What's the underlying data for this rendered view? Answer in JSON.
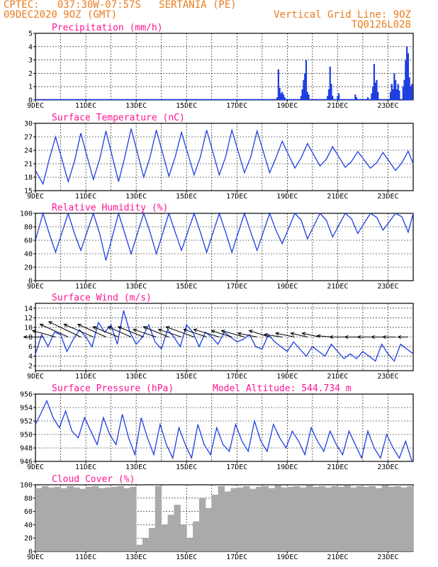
{
  "header": {
    "left_line1": "CPTEC:   037:30W-07:57S   SERTANIA (PE)",
    "left_line2": "09DEC2020 9OZ (GMT)",
    "right_line1": "Vertical Grid Line: 9OZ",
    "right_line2": "TQ0126L028"
  },
  "colors": {
    "header": "#e87c1e",
    "title": "#ff1493",
    "line": "#1f3fe0",
    "bar": "#1f3fe0",
    "cloud": "#aaaaaa",
    "arrow": "#000000"
  },
  "chart_data": [
    {
      "type": "bar",
      "title": "Precipitation (mm/h)",
      "ylim": [
        0,
        5
      ],
      "yticks": [
        0,
        1,
        2,
        3,
        4,
        5
      ],
      "xticks": [
        "9DEC",
        "11DEC",
        "13DEC",
        "15DEC",
        "17DEC",
        "19DEC",
        "21DEC",
        "23DEC"
      ],
      "xrange_days": [
        9,
        24
      ],
      "series": [
        {
          "x": [
            18.6,
            18.65,
            18.7,
            18.75,
            18.8,
            18.85,
            18.9,
            19.55,
            19.6,
            19.65,
            19.7,
            19.75,
            19.8,
            19.85,
            20.6,
            20.65,
            20.7,
            20.75,
            20.8,
            21.0,
            21.05,
            21.7,
            21.75,
            22.2,
            22.35,
            22.4,
            22.45,
            22.5,
            22.55,
            22.6,
            23.1,
            23.15,
            23.2,
            23.25,
            23.3,
            23.35,
            23.4,
            23.45,
            23.6,
            23.65,
            23.7,
            23.75,
            23.8,
            23.85,
            23.9,
            23.95
          ],
          "values": [
            0.2,
            2.3,
            0.9,
            0.5,
            0.6,
            0.4,
            0.2,
            0.3,
            0.8,
            1.5,
            2.0,
            3.0,
            0.6,
            0.4,
            0.3,
            0.8,
            2.5,
            1.2,
            0.3,
            0.3,
            0.5,
            0.4,
            0.2,
            0.2,
            0.5,
            1.0,
            2.7,
            1.3,
            1.5,
            0.6,
            0.6,
            1.2,
            0.8,
            2.0,
            1.5,
            0.8,
            1.2,
            0.7,
            1.0,
            1.5,
            3.0,
            4.0,
            3.5,
            1.7,
            1.0,
            1.2
          ]
        }
      ]
    },
    {
      "type": "line",
      "title": "Surface Temperature (nC)",
      "ylim": [
        15,
        30
      ],
      "yticks": [
        15,
        18,
        21,
        24,
        27,
        30
      ],
      "xticks": [
        "9DEC",
        "11DEC",
        "13DEC",
        "15DEC",
        "17DEC",
        "19DEC",
        "21DEC",
        "23DEC"
      ],
      "series": [
        {
          "x": [
            9.0,
            9.3,
            9.55,
            9.8,
            10.3,
            10.55,
            10.8,
            11.3,
            11.55,
            11.8,
            12.3,
            12.55,
            12.8,
            13.3,
            13.55,
            13.8,
            14.3,
            14.55,
            14.8,
            15.3,
            15.55,
            15.8,
            16.3,
            16.55,
            16.8,
            17.3,
            17.55,
            17.8,
            18.3,
            18.55,
            18.8,
            19.3,
            19.55,
            19.8,
            20.3,
            20.55,
            20.8,
            21.3,
            21.55,
            21.8,
            22.3,
            22.55,
            22.8,
            23.3,
            23.55,
            23.8,
            24.0
          ],
          "values": [
            19.5,
            16.5,
            22,
            27,
            17,
            21.5,
            27.8,
            17.5,
            22,
            28.3,
            17.0,
            22.5,
            28.8,
            18.0,
            22.5,
            28.5,
            18.2,
            22.5,
            28.0,
            18.5,
            22.5,
            28.5,
            18.5,
            22.5,
            28.5,
            19.0,
            22.5,
            28.3,
            19.0,
            22.3,
            26.0,
            20.0,
            22.3,
            25.5,
            20.5,
            22.0,
            24.8,
            20.2,
            21.5,
            23.7,
            20.0,
            21.2,
            23.5,
            19.5,
            21.2,
            23.8,
            21.0
          ]
        }
      ]
    },
    {
      "type": "line",
      "title": "Relative Humidity (%)",
      "ylim": [
        0,
        100
      ],
      "yticks": [
        0,
        20,
        40,
        60,
        80,
        100
      ],
      "xticks": [
        "9DEC",
        "11DEC",
        "13DEC",
        "15DEC",
        "17DEC",
        "19DEC",
        "21DEC",
        "23DEC"
      ],
      "series": [
        {
          "x": [
            9.0,
            9.3,
            9.55,
            9.8,
            10.3,
            10.55,
            10.8,
            11.3,
            11.55,
            11.8,
            12.3,
            12.55,
            12.8,
            13.3,
            13.55,
            13.8,
            14.3,
            14.55,
            14.8,
            15.3,
            15.55,
            15.8,
            16.3,
            16.55,
            16.8,
            17.3,
            17.55,
            17.8,
            18.3,
            18.55,
            18.8,
            19.3,
            19.55,
            19.8,
            20.3,
            20.55,
            20.8,
            21.3,
            21.55,
            21.8,
            22.3,
            22.55,
            22.8,
            23.3,
            23.55,
            23.8,
            24.0
          ],
          "values": [
            60,
            100,
            70,
            42,
            100,
            70,
            45,
            100,
            70,
            30,
            100,
            70,
            40,
            100,
            72,
            40,
            100,
            72,
            45,
            100,
            72,
            42,
            100,
            72,
            42,
            100,
            72,
            45,
            100,
            75,
            55,
            100,
            90,
            62,
            100,
            90,
            65,
            100,
            92,
            70,
            100,
            94,
            75,
            100,
            95,
            72,
            100
          ]
        }
      ]
    },
    {
      "type": "line",
      "title": "Surface Wind (m/s)",
      "ylim": [
        1,
        15
      ],
      "yticks": [
        2,
        4,
        6,
        8,
        10,
        12,
        14
      ],
      "xticks": [
        "9DEC",
        "11DEC",
        "13DEC",
        "15DEC",
        "17DEC",
        "19DEC",
        "21DEC",
        "23DEC"
      ],
      "series": [
        {
          "x": [
            9.0,
            9.25,
            9.5,
            9.75,
            10.0,
            10.25,
            10.5,
            10.75,
            11.0,
            11.25,
            11.5,
            11.75,
            12.0,
            12.25,
            12.5,
            12.75,
            13.0,
            13.25,
            13.5,
            13.75,
            14.0,
            14.25,
            14.5,
            14.75,
            15.0,
            15.25,
            15.5,
            15.75,
            16.0,
            16.25,
            16.5,
            16.75,
            17.0,
            17.25,
            17.5,
            17.75,
            18.0,
            18.25,
            18.5,
            18.75,
            19.0,
            19.25,
            19.5,
            19.75,
            20.0,
            20.25,
            20.5,
            20.75,
            21.0,
            21.25,
            21.5,
            21.75,
            22.0,
            22.25,
            22.5,
            22.75,
            23.0,
            23.25,
            23.5,
            23.75,
            24.0
          ],
          "values": [
            4.5,
            8.5,
            6.0,
            9.0,
            8.5,
            5.0,
            7.5,
            9.5,
            8.0,
            6.0,
            11.0,
            9.0,
            10.5,
            6.5,
            13.5,
            9.0,
            6.5,
            8.0,
            10.5,
            7.0,
            5.5,
            9.5,
            8.0,
            6.0,
            10.5,
            9.0,
            6.0,
            9.0,
            8.0,
            6.5,
            9.0,
            8.0,
            7.0,
            7.5,
            8.5,
            6.0,
            5.5,
            8.5,
            7.0,
            6.0,
            5.0,
            7.0,
            5.5,
            4.0,
            6.0,
            5.0,
            4.0,
            6.5,
            5.0,
            3.5,
            4.5,
            3.5,
            5.0,
            4.0,
            3.0,
            6.5,
            4.5,
            3.0,
            6.5,
            5.5,
            4.5
          ]
        }
      ],
      "vectors": {
        "x": [
          9.3,
          9.8,
          10.3,
          10.8,
          11.3,
          11.8,
          12.3,
          12.8,
          13.3,
          13.8,
          14.3,
          14.8,
          15.3,
          15.8,
          16.3,
          16.8,
          17.3,
          17.8,
          18.3,
          18.8,
          19.3,
          19.8,
          20.3,
          20.8,
          21.3,
          21.8,
          22.3,
          22.8,
          23.3,
          23.8
        ],
        "u": [
          -1.5,
          -1.8,
          -2.2,
          -2.5,
          -2.3,
          -2.2,
          -2.0,
          -1.8,
          -2.0,
          -1.8,
          -2.0,
          -1.8,
          -2.2,
          -1.8,
          -2.0,
          -1.6,
          -1.8,
          -1.5,
          -1.6,
          -1.4,
          -1.5,
          -1.3,
          -1.4,
          -1.2,
          -1.2,
          -1.0,
          -1.0,
          -0.9,
          -1.0,
          -0.8
        ],
        "v": [
          0.0,
          0.5,
          1.0,
          1.2,
          1.0,
          1.0,
          0.8,
          0.8,
          0.8,
          0.6,
          0.8,
          0.6,
          0.8,
          0.6,
          0.6,
          0.5,
          0.5,
          0.3,
          0.5,
          0.2,
          0.3,
          0.3,
          0.3,
          0.1,
          0.0,
          0.0,
          0.0,
          0.0,
          0.0,
          0.0
        ]
      }
    },
    {
      "type": "line",
      "title": "Surface Pressure (hPa)",
      "annotation": "Model Altitude: 544.734 m",
      "ylim": [
        946,
        956
      ],
      "yticks": [
        946,
        948,
        950,
        952,
        954,
        956
      ],
      "xticks": [
        "9DEC",
        "11DEC",
        "13DEC",
        "15DEC",
        "17DEC",
        "19DEC",
        "21DEC",
        "23DEC"
      ],
      "series": [
        {
          "x": [
            9.0,
            9.2,
            9.45,
            9.7,
            9.95,
            10.2,
            10.45,
            10.7,
            10.95,
            11.2,
            11.45,
            11.7,
            11.95,
            12.2,
            12.45,
            12.7,
            12.95,
            13.2,
            13.45,
            13.7,
            13.95,
            14.2,
            14.45,
            14.7,
            14.95,
            15.2,
            15.45,
            15.7,
            15.95,
            16.2,
            16.45,
            16.7,
            16.95,
            17.2,
            17.45,
            17.7,
            17.95,
            18.2,
            18.45,
            18.7,
            18.95,
            19.2,
            19.45,
            19.7,
            19.95,
            20.2,
            20.45,
            20.7,
            20.95,
            21.2,
            21.45,
            21.7,
            21.95,
            22.2,
            22.45,
            22.7,
            22.95,
            23.2,
            23.45,
            23.7,
            23.95
          ],
          "values": [
            951.5,
            953.0,
            955.0,
            952.5,
            951.0,
            953.5,
            950.5,
            949.5,
            952.5,
            950.5,
            948.5,
            952.5,
            950.0,
            948.5,
            953.0,
            949.5,
            947.0,
            952.5,
            949.5,
            947.0,
            951.5,
            948.5,
            946.5,
            951.0,
            948.5,
            946.5,
            951.5,
            948.5,
            947.0,
            951.0,
            948.5,
            947.5,
            951.5,
            949.0,
            947.5,
            952.0,
            949.0,
            947.5,
            951.5,
            949.5,
            948.0,
            950.5,
            949.0,
            947.0,
            951.0,
            949.0,
            947.5,
            950.5,
            948.5,
            947.0,
            950.5,
            948.5,
            946.5,
            950.5,
            948.0,
            946.5,
            950.0,
            948.0,
            946.5,
            949.0,
            946.0
          ]
        }
      ]
    },
    {
      "type": "bar",
      "title": "Cloud Cover (%)",
      "ylim": [
        0,
        100
      ],
      "yticks": [
        0,
        20,
        40,
        60,
        80,
        100
      ],
      "xticks": [
        "9DEC",
        "11DEC",
        "13DEC",
        "15DEC",
        "17DEC",
        "19DEC",
        "21DEC",
        "23DEC"
      ],
      "series": [
        {
          "x": [
            9.0,
            9.25,
            9.5,
            9.75,
            10.0,
            10.25,
            10.5,
            10.75,
            11.0,
            11.25,
            11.5,
            11.75,
            12.0,
            12.25,
            12.5,
            12.75,
            13.0,
            13.25,
            13.5,
            13.75,
            14.0,
            14.25,
            14.5,
            14.75,
            15.0,
            15.25,
            15.5,
            15.75,
            16.0,
            16.25,
            16.5,
            16.75,
            17.0,
            17.25,
            17.5,
            17.75,
            18.0,
            18.25,
            18.5,
            18.75,
            19.0,
            19.25,
            19.5,
            19.75,
            20.0,
            20.25,
            20.5,
            20.75,
            21.0,
            21.25,
            21.5,
            21.75,
            22.0,
            22.25,
            22.5,
            22.75,
            23.0,
            23.25,
            23.5,
            23.75
          ],
          "values": [
            95,
            98,
            96,
            97,
            95,
            98,
            96,
            94,
            97,
            98,
            95,
            96,
            97,
            98,
            95,
            97,
            10,
            20,
            35,
            98,
            40,
            55,
            70,
            40,
            20,
            45,
            80,
            65,
            85,
            98,
            90,
            95,
            96,
            98,
            94,
            97,
            98,
            95,
            99,
            96,
            97,
            98,
            96,
            99,
            97,
            98,
            96,
            98,
            97,
            99,
            96,
            98,
            97,
            98,
            95,
            99,
            97,
            98,
            96,
            98
          ]
        }
      ]
    }
  ]
}
